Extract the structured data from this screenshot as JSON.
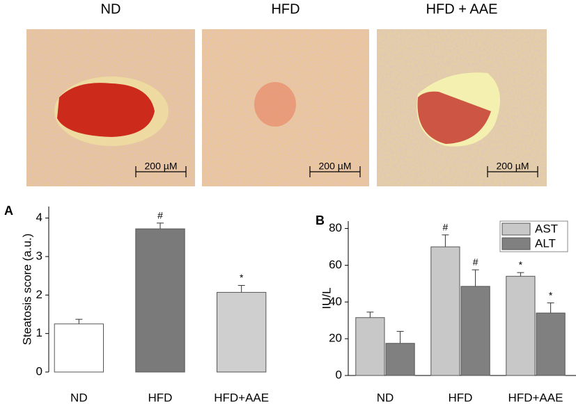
{
  "micrographs": {
    "labels": [
      "ND",
      "HFD",
      "HFD + AAE"
    ],
    "scale_bar": "200 µM"
  },
  "chart_data": [
    {
      "type": "bar",
      "panel": "A",
      "ylabel": "Steatosis score (a.u.)",
      "categories": [
        "ND",
        "HFD",
        "HFD+AAE"
      ],
      "values": [
        1.25,
        3.72,
        2.07
      ],
      "errors": [
        0.12,
        0.15,
        0.18
      ],
      "colors": [
        "#ffffff",
        "#7a7a7a",
        "#cfcfcf"
      ],
      "annotations": [
        null,
        "#",
        "*"
      ],
      "ylim": [
        0,
        4.3
      ],
      "yticks": [
        0,
        1,
        2,
        3,
        4
      ]
    },
    {
      "type": "bar",
      "panel": "B",
      "ylabel": "IU/L",
      "categories": [
        "ND",
        "HFD",
        "HFD+AAE"
      ],
      "series": [
        {
          "name": "AST",
          "color": "#c8c8c8",
          "values": [
            31.5,
            70,
            54
          ],
          "errors": [
            3,
            6.5,
            2
          ],
          "annotations": [
            null,
            "#",
            "*"
          ]
        },
        {
          "name": "ALT",
          "color": "#808080",
          "values": [
            17.5,
            48.5,
            34
          ],
          "errors": [
            6.5,
            9,
            5.5
          ],
          "annotations": [
            null,
            "#",
            "*"
          ]
        }
      ],
      "legend": "upper right",
      "ylim": [
        0,
        84
      ],
      "yticks": [
        0,
        20,
        40,
        60,
        80
      ]
    }
  ]
}
